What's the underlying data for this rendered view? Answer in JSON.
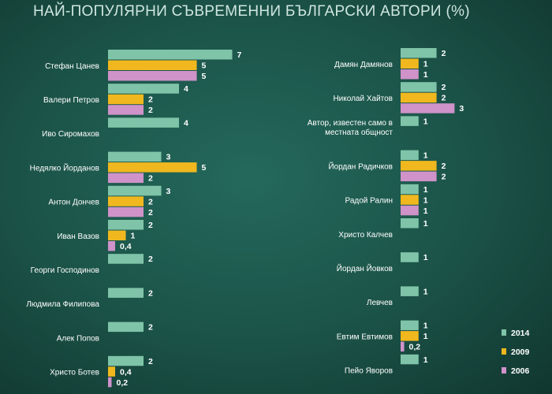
{
  "chart_data": {
    "type": "bar",
    "orientation": "horizontal",
    "title": "НАЙ-ПОПУЛЯРНИ СЪВРЕМЕННИ БЪЛГАРСКИ АВТОРИ (%)",
    "colors": {
      "2014": "#7fc4a8",
      "2009": "#f0b81e",
      "2006": "#cf92c9"
    },
    "legend": {
      "position": "right",
      "entries": [
        "2014",
        "2009",
        "2006"
      ]
    },
    "panels": [
      {
        "categories": [
          {
            "name": "Стефан Цанев",
            "values": [
              {
                "series": "2014",
                "value": 7,
                "label": "7"
              },
              {
                "series": "2009",
                "value": 5,
                "label": "5"
              },
              {
                "series": "2006",
                "value": 5,
                "label": "5"
              }
            ]
          },
          {
            "name": "Валери Петров",
            "values": [
              {
                "series": "2014",
                "value": 4,
                "label": "4"
              },
              {
                "series": "2009",
                "value": 2,
                "label": "2"
              },
              {
                "series": "2006",
                "value": 2,
                "label": "2"
              }
            ]
          },
          {
            "name": "Иво Сиромахов",
            "values": [
              {
                "series": "2014",
                "value": 4,
                "label": "4"
              }
            ]
          },
          {
            "name": "Недялко Йорданов",
            "values": [
              {
                "series": "2014",
                "value": 3,
                "label": "3"
              },
              {
                "series": "2009",
                "value": 5,
                "label": "5"
              },
              {
                "series": "2006",
                "value": 2,
                "label": "2"
              }
            ]
          },
          {
            "name": "Антон Дончев",
            "values": [
              {
                "series": "2014",
                "value": 3,
                "label": "3"
              },
              {
                "series": "2009",
                "value": 2,
                "label": "2"
              },
              {
                "series": "2006",
                "value": 2,
                "label": "2"
              }
            ]
          },
          {
            "name": "Иван Вазов",
            "values": [
              {
                "series": "2014",
                "value": 2,
                "label": "2"
              },
              {
                "series": "2009",
                "value": 1,
                "label": "1"
              },
              {
                "series": "2006",
                "value": 0.4,
                "label": "0,4"
              }
            ]
          },
          {
            "name": "Георги Господинов",
            "values": [
              {
                "series": "2014",
                "value": 2,
                "label": "2"
              }
            ]
          },
          {
            "name": "Людмила Филипова",
            "values": [
              {
                "series": "2014",
                "value": 2,
                "label": "2"
              }
            ]
          },
          {
            "name": "Алек Попов",
            "values": [
              {
                "series": "2014",
                "value": 2,
                "label": "2"
              }
            ]
          },
          {
            "name": "Христо Ботев",
            "values": [
              {
                "series": "2014",
                "value": 2,
                "label": "2"
              },
              {
                "series": "2009",
                "value": 0.4,
                "label": "0,4"
              },
              {
                "series": "2006",
                "value": 0.2,
                "label": "0,2"
              }
            ]
          }
        ]
      },
      {
        "categories": [
          {
            "name": "Дамян Дамянов",
            "values": [
              {
                "series": "2014",
                "value": 2,
                "label": "2"
              },
              {
                "series": "2009",
                "value": 1,
                "label": "1"
              },
              {
                "series": "2006",
                "value": 1,
                "label": "1"
              }
            ]
          },
          {
            "name": "Николай Хайтов",
            "values": [
              {
                "series": "2014",
                "value": 2,
                "label": "2"
              },
              {
                "series": "2009",
                "value": 2,
                "label": "2"
              },
              {
                "series": "2006",
                "value": 3,
                "label": "3"
              }
            ]
          },
          {
            "name": "Автор, известен само в местната общност",
            "values": [
              {
                "series": "2014",
                "value": 1,
                "label": "1"
              }
            ]
          },
          {
            "name": "Йордан Радичков",
            "values": [
              {
                "series": "2014",
                "value": 1,
                "label": "1"
              },
              {
                "series": "2009",
                "value": 2,
                "label": "2"
              },
              {
                "series": "2006",
                "value": 2,
                "label": "2"
              }
            ]
          },
          {
            "name": "Радой Ралин",
            "values": [
              {
                "series": "2014",
                "value": 1,
                "label": "1"
              },
              {
                "series": "2009",
                "value": 1,
                "label": "1"
              },
              {
                "series": "2006",
                "value": 1,
                "label": "1"
              }
            ]
          },
          {
            "name": "Христо Калчев",
            "values": [
              {
                "series": "2014",
                "value": 1,
                "label": "1"
              }
            ]
          },
          {
            "name": "Йордан Йовков",
            "values": [
              {
                "series": "2014",
                "value": 1,
                "label": "1"
              }
            ]
          },
          {
            "name": "Левчев",
            "values": [
              {
                "series": "2014",
                "value": 1,
                "label": "1"
              }
            ]
          },
          {
            "name": "Евтим Евтимов",
            "values": [
              {
                "series": "2014",
                "value": 1,
                "label": "1"
              },
              {
                "series": "2009",
                "value": 1,
                "label": "1"
              },
              {
                "series": "2006",
                "value": 0.2,
                "label": "0,2"
              }
            ]
          },
          {
            "name": "Пейо Яворов",
            "values": [
              {
                "series": "2014",
                "value": 1,
                "label": "1"
              }
            ]
          }
        ]
      }
    ]
  }
}
